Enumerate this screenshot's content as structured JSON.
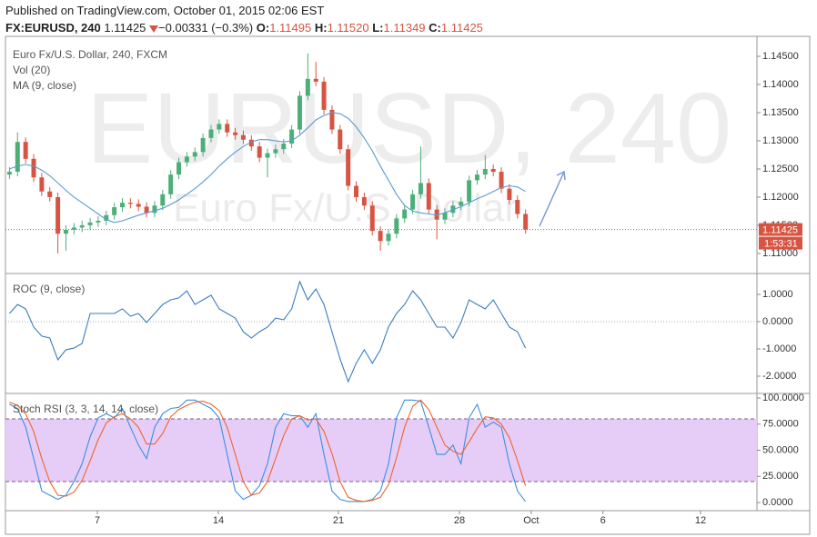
{
  "header": {
    "published": "Published on TradingView.com, October 01, 2015 02:06 EST",
    "symbol": "FX:EURUSD, 240",
    "price": "1.11425",
    "change": "−0.00331 (−0.3%)",
    "ohlc": [
      {
        "label": "O:",
        "value": "1.11495"
      },
      {
        "label": "H:",
        "value": "1.11520"
      },
      {
        "label": "L:",
        "value": "1.11349"
      },
      {
        "label": "C:",
        "value": "1.11425"
      }
    ]
  },
  "chart_data": [
    {
      "type": "candlestick",
      "title": "Euro Fx/U.S. Dollar, 240, FXCM",
      "indicators": [
        "Vol (20)"
      ],
      "watermark": "EURUSD, 240",
      "watermark_sub": "Euro Fx/U.S. Dollar",
      "up_color": "#4caf78",
      "down_color": "#d75442",
      "x": [
        0.5,
        1.5,
        2.5,
        3.5,
        4.5,
        5.5,
        6.5,
        7.5,
        8.5,
        9.5,
        10.5,
        11.5,
        12.5,
        13.5,
        14.5,
        15.5,
        16.5,
        17.5,
        18.5,
        19.5,
        20.5,
        21.5,
        22.5,
        23.5,
        24.5,
        25.5,
        26.5,
        27.5,
        28.5,
        29.5,
        30.5,
        31.5,
        32.5,
        33.5,
        34.5,
        35.5,
        36.5,
        37.5,
        38.5,
        39.5,
        40.5,
        41.5,
        42.5,
        43.5,
        44.5,
        45.5,
        46.5,
        47.5,
        48.5,
        49.5,
        50.5,
        51.5,
        52.5,
        53.5,
        54.5,
        55.5,
        56.5,
        57.5,
        58.5,
        59.5,
        60.5,
        61.5,
        62.5,
        63.5,
        64.5
      ],
      "xlim": [
        0,
        93.2
      ],
      "open": [
        1.124,
        1.1245,
        1.1298,
        1.1268,
        1.1235,
        1.121,
        1.12,
        1.1135,
        1.1142,
        1.1146,
        1.115,
        1.1155,
        1.1158,
        1.1168,
        1.1182,
        1.119,
        1.1188,
        1.1183,
        1.1172,
        1.1185,
        1.1205,
        1.124,
        1.1262,
        1.1272,
        1.128,
        1.1305,
        1.132,
        1.133,
        1.1315,
        1.131,
        1.1302,
        1.129,
        1.127,
        1.1278,
        1.1285,
        1.1295,
        1.132,
        1.138,
        1.141,
        1.1405,
        1.1355,
        1.132,
        1.1285,
        1.122,
        1.12,
        1.1185,
        1.114,
        1.1122,
        1.1135,
        1.1162,
        1.1178,
        1.1205,
        1.1225,
        1.1178,
        1.116,
        1.1172,
        1.1185,
        1.1192,
        1.123,
        1.124,
        1.125,
        1.1245,
        1.1215,
        1.1195,
        1.117
      ],
      "high": [
        1.1253,
        1.1315,
        1.1306,
        1.1276,
        1.1243,
        1.1218,
        1.1208,
        1.115,
        1.1154,
        1.1158,
        1.1163,
        1.1166,
        1.1176,
        1.119,
        1.1198,
        1.1198,
        1.1196,
        1.1191,
        1.1193,
        1.1213,
        1.1248,
        1.127,
        1.128,
        1.1288,
        1.1313,
        1.1328,
        1.1338,
        1.1338,
        1.1323,
        1.1318,
        1.131,
        1.1298,
        1.1286,
        1.1293,
        1.1303,
        1.1328,
        1.1388,
        1.1455,
        1.144,
        1.1413,
        1.1363,
        1.1328,
        1.1293,
        1.1228,
        1.1208,
        1.1193,
        1.1148,
        1.1143,
        1.117,
        1.1186,
        1.1213,
        1.129,
        1.1233,
        1.1186,
        1.118,
        1.1193,
        1.12,
        1.1238,
        1.1248,
        1.1275,
        1.1258,
        1.1253,
        1.1223,
        1.1203,
        1.1178
      ],
      "low": [
        1.1232,
        1.1237,
        1.126,
        1.1227,
        1.1202,
        1.1192,
        1.11,
        1.1105,
        1.1134,
        1.1138,
        1.1142,
        1.1147,
        1.115,
        1.116,
        1.1174,
        1.118,
        1.1175,
        1.1164,
        1.1164,
        1.1177,
        1.1197,
        1.1232,
        1.1254,
        1.1264,
        1.1272,
        1.1297,
        1.1312,
        1.1307,
        1.1302,
        1.1294,
        1.1282,
        1.1262,
        1.1235,
        1.127,
        1.1277,
        1.1287,
        1.1312,
        1.1372,
        1.1397,
        1.1347,
        1.1312,
        1.1277,
        1.1212,
        1.1192,
        1.1177,
        1.1132,
        1.1105,
        1.1114,
        1.1127,
        1.1154,
        1.117,
        1.1197,
        1.117,
        1.1125,
        1.1152,
        1.1164,
        1.1177,
        1.1184,
        1.1222,
        1.1232,
        1.1237,
        1.1207,
        1.1187,
        1.1162,
        1.1135
      ],
      "close": [
        1.1245,
        1.1298,
        1.1268,
        1.1235,
        1.121,
        1.12,
        1.1135,
        1.1142,
        1.1146,
        1.115,
        1.1155,
        1.1158,
        1.1168,
        1.1182,
        1.119,
        1.1188,
        1.1183,
        1.1172,
        1.1185,
        1.1205,
        1.124,
        1.1262,
        1.1272,
        1.128,
        1.1305,
        1.132,
        1.133,
        1.1315,
        1.131,
        1.1302,
        1.129,
        1.127,
        1.1278,
        1.1285,
        1.1295,
        1.132,
        1.138,
        1.141,
        1.1405,
        1.1355,
        1.132,
        1.1285,
        1.122,
        1.12,
        1.1185,
        1.114,
        1.1122,
        1.1135,
        1.1162,
        1.1178,
        1.1205,
        1.1225,
        1.1178,
        1.116,
        1.1172,
        1.1185,
        1.1192,
        1.123,
        1.124,
        1.125,
        1.1245,
        1.1215,
        1.1195,
        1.117,
        1.11425
      ],
      "series": [
        {
          "name": "MA (9, close)",
          "color": "#5b9bd0",
          "values": [
            1.125,
            1.1255,
            1.1258,
            1.1255,
            1.1248,
            1.1238,
            1.1225,
            1.1212,
            1.12,
            1.119,
            1.118,
            1.117,
            1.116,
            1.1155,
            1.1158,
            1.1163,
            1.1168,
            1.1172,
            1.1176,
            1.118,
            1.1187,
            1.1195,
            1.1205,
            1.1215,
            1.1227,
            1.124,
            1.1255,
            1.1268,
            1.128,
            1.129,
            1.1298,
            1.1302,
            1.1302,
            1.13,
            1.1298,
            1.13,
            1.131,
            1.1323,
            1.1337,
            1.1345,
            1.135,
            1.1348,
            1.134,
            1.1325,
            1.1305,
            1.1282,
            1.1255,
            1.123,
            1.1205,
            1.1185,
            1.1175,
            1.1172,
            1.117,
            1.1168,
            1.1172,
            1.1178,
            1.1183,
            1.119,
            1.1197,
            1.1203,
            1.121,
            1.1217,
            1.122,
            1.1218,
            1.121
          ]
        }
      ],
      "last_price": {
        "value": 1.11425,
        "label": "1.11425"
      },
      "countdown": "1:53:31",
      "ylim": [
        1.1066,
        1.1479
      ],
      "yticks": [
        {
          "value": 1.11,
          "label": "1.11000"
        },
        {
          "value": 1.115,
          "label": "1.11500"
        },
        {
          "value": 1.12,
          "label": "1.12000"
        },
        {
          "value": 1.125,
          "label": "1.12500"
        },
        {
          "value": 1.13,
          "label": "1.13000"
        },
        {
          "value": 1.135,
          "label": "1.13500"
        },
        {
          "value": 1.14,
          "label": "1.14000"
        },
        {
          "value": 1.145,
          "label": "1.14500"
        }
      ],
      "grid": false
    },
    {
      "type": "line",
      "title": "ROC (9, close)",
      "series": [
        {
          "color": "#3a7dbf",
          "values": [
            0.3,
            0.63,
            0.47,
            -0.2,
            -0.53,
            -0.6,
            -1.4,
            -1.03,
            -0.97,
            -0.8,
            0.3,
            0.3,
            0.3,
            0.3,
            0.47,
            0.2,
            0.3,
            -0.03,
            0.3,
            0.63,
            0.8,
            0.87,
            1.13,
            0.63,
            0.8,
            0.97,
            0.47,
            0.3,
            0.13,
            -0.37,
            -0.6,
            -0.37,
            -0.2,
            0.13,
            0.07,
            0.47,
            1.47,
            0.8,
            1.2,
            0.63,
            -0.37,
            -1.37,
            -2.2,
            -1.53,
            -1.03,
            -1.53,
            -1.03,
            -0.2,
            0.3,
            0.63,
            1.13,
            0.8,
            0.3,
            -0.2,
            -0.2,
            -0.6,
            -0.03,
            0.8,
            0.63,
            0.47,
            0.8,
            0.3,
            -0.2,
            -0.37,
            -0.97
          ]
        }
      ],
      "hlines": [
        0
      ],
      "ylim": [
        -2.6,
        1.733
      ],
      "yticks": [
        {
          "value": 1,
          "label": "1.0000"
        },
        {
          "value": 0,
          "label": "0.0000"
        },
        {
          "value": -1,
          "label": "-1.0000"
        },
        {
          "value": -2,
          "label": "-2.0000"
        }
      ],
      "grid": false
    },
    {
      "type": "line",
      "title": "Stoch RSI (3, 3, 14, 14, close)",
      "series": [
        {
          "color": "#3c8ee0",
          "values": [
            94,
            90,
            72,
            42,
            11,
            7,
            3,
            7,
            20,
            37,
            63,
            81,
            85,
            81,
            90,
            72,
            55,
            42,
            72,
            85,
            90,
            91,
            98,
            98,
            94,
            90,
            81,
            46,
            11,
            3,
            7,
            16,
            37,
            72,
            85,
            83,
            83,
            72,
            85,
            46,
            11,
            3,
            1,
            1,
            1,
            3,
            11,
            37,
            81,
            98,
            98,
            97,
            72,
            46,
            46,
            55,
            37,
            81,
            94,
            72,
            77,
            72,
            37,
            11,
            1
          ]
        },
        {
          "color": "#f0632a",
          "values": [
            96,
            93,
            85,
            68,
            42,
            20,
            7,
            6,
            10,
            21,
            40,
            60,
            76,
            82,
            85,
            80,
            72,
            56,
            56,
            66,
            82,
            89,
            93,
            96,
            97,
            94,
            88,
            72,
            46,
            20,
            7,
            9,
            20,
            42,
            64,
            80,
            83,
            79,
            80,
            68,
            47,
            20,
            5,
            2,
            1,
            2,
            5,
            17,
            43,
            72,
            92,
            98,
            89,
            72,
            55,
            49,
            46,
            58,
            71,
            82,
            81,
            75,
            62,
            40,
            16
          ]
        }
      ],
      "band": [
        20,
        80
      ],
      "band_color": "#e6cdf8",
      "ylim": [
        -7.8,
        103.5
      ],
      "yticks": [
        {
          "value": 100,
          "label": "100.0000"
        },
        {
          "value": 75,
          "label": "75.0000"
        },
        {
          "value": 50,
          "label": "50.0000"
        },
        {
          "value": 25,
          "label": "25.0000"
        },
        {
          "value": 0,
          "label": "0.0000"
        }
      ],
      "xticks": [
        {
          "value": 11.4,
          "label": "7"
        },
        {
          "value": 26.4,
          "label": "14"
        },
        {
          "value": 41.3,
          "label": "21"
        },
        {
          "value": 56.3,
          "label": "28"
        },
        {
          "value": 65.2,
          "label": "Oct"
        },
        {
          "value": 74.1,
          "label": "6"
        },
        {
          "value": 86.2,
          "label": "12"
        }
      ],
      "grid": false
    }
  ]
}
